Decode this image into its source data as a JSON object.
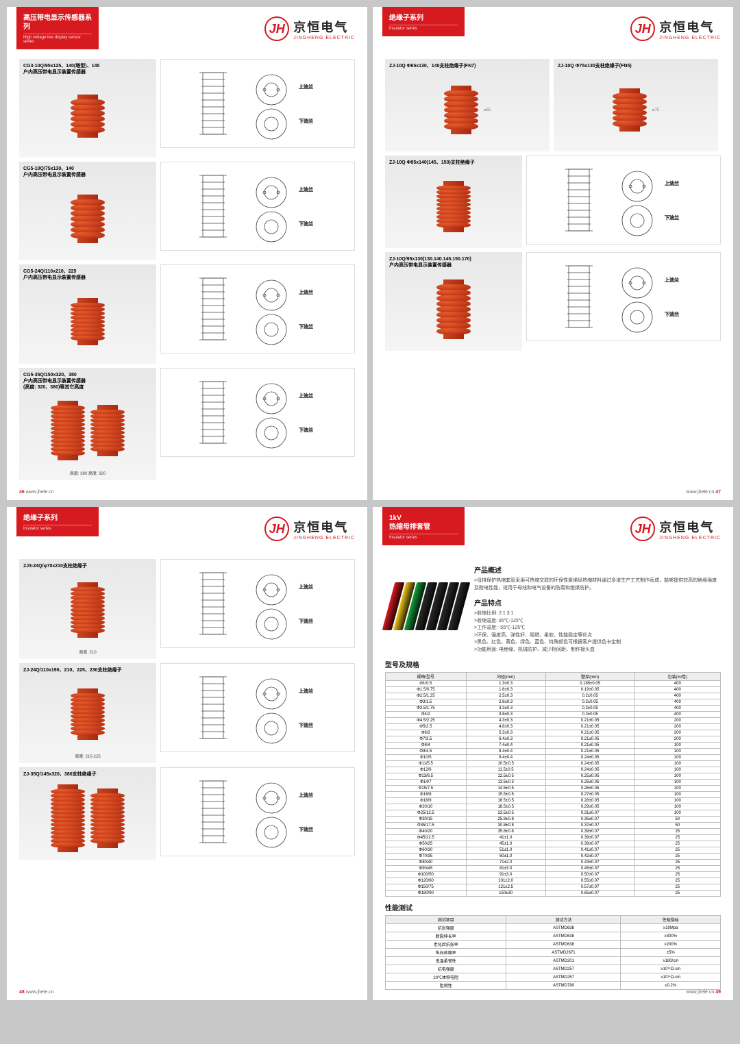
{
  "brand": {
    "cn": "京恒电气",
    "en": "JINGHENG ELECTRIC",
    "logo": "JH"
  },
  "pages": {
    "p46": {
      "tab_title": "高压带电显示传感器系列",
      "tab_sub": "High voltage live display sensor series",
      "num": "46",
      "url": "www.jhele.cn"
    },
    "p47": {
      "tab_title": "绝缘子系列",
      "tab_sub": "Insulator series",
      "num": "47",
      "url": "www.jhele.cn"
    },
    "p48": {
      "tab_title": "绝缘子系列",
      "tab_sub": "Insulator series",
      "num": "48",
      "url": "www.jhele.cn"
    },
    "p49": {
      "tab_title": "1kV\n热缩母排套管",
      "tab_sub": "Insulator series",
      "num": "49",
      "url": "www.jhele.cn"
    }
  },
  "products_46": [
    {
      "title": "CG3-10Q/95x125、140(塔型)、145\n户内高压带电显示装置传感器"
    },
    {
      "title": "CG5-10Q/75x130、140\n户内高压带电显示装置传感器"
    },
    {
      "title": "CG5-24Q/110x210、225\n户内高压带电显示装置传感器"
    },
    {
      "title": "CG5-35Q/150x320、380\n户内高压带电显示装置传感器\n(高度: 320、380)等其它高度",
      "caption": "高度: 380    高度: 320"
    }
  ],
  "products_47": [
    {
      "title": "ZJ-10Q Φ65x130、140支柱绝缘子(FN7)"
    },
    {
      "title": "ZJ-10Q Φ75x130支柱绝缘子(FN5)"
    },
    {
      "title": "ZJ-10Q Φ85x140(145、150)支柱绝缘子"
    },
    {
      "title": "ZJ-10Q/95x130(130.140.145.150.170)\n户内高压带电显示装置传感器"
    }
  ],
  "products_48": [
    {
      "title": "ZJ3-24Q/φ70x210支柱绝缘子",
      "caption": "高度: 210"
    },
    {
      "title": "ZJ-24Q/110x190、210、225、230支柱绝缘子",
      "caption": "高度: 210-225"
    },
    {
      "title": "ZJ-35Q/145x320、380支柱绝缘子"
    }
  ],
  "p49_content": {
    "overview_h": "产品概述",
    "overview_t": ">母排保护热缩套管采用可热缩交联的环保性聚烯烃热缩材料通过多道生产工艺制作而成，能够提供较高的绝缘强度及耐电性能，适用于母线和电气设备的防腐和绝缘防护。",
    "features_h": "产品特点",
    "features": [
      ">收缩比例: 2:1  3:1",
      ">收缩温度: 85℃-125℃",
      ">工作温度: -55℃-125℃",
      ">环保、强度高、弹性好、阻燃、柔软、性能稳定等优点",
      ">黑色、红色、黄色、绿色、蓝色、特殊颜色可根据客户提供色卡定制",
      ">功能用途: 电绝缘、机械防护、减少相间距、制作接头盒"
    ],
    "spec_h": "型号及规格",
    "spec_cols": [
      "规格/型号",
      "内径(mm)",
      "壁厚(mm)",
      "包装(m/卷)"
    ],
    "spec_rows": [
      [
        "Φ1/0.5",
        "1.3±0.3",
        "0.185±0.05",
        "400"
      ],
      [
        "Φ1.5/0.75",
        "1.8±0.3",
        "0.19±0.05",
        "400"
      ],
      [
        "Φ2.5/1.25",
        "2.5±0.3",
        "0.2±0.05",
        "400"
      ],
      [
        "Φ3/1.5",
        "2.8±0.3",
        "0.2±0.05",
        "400"
      ],
      [
        "Φ3.5/1.75",
        "3.3±0.3",
        "0.2±0.05",
        "400"
      ],
      [
        "Φ4/2",
        "3.8±0.3",
        "0.2±0.05",
        "400"
      ],
      [
        "Φ4.5/2.25",
        "4.3±0.3",
        "0.21±0.05",
        "200"
      ],
      [
        "Φ5/2.5",
        "4.8±0.3",
        "0.21±0.05",
        "200"
      ],
      [
        "Φ6/3",
        "5.3±0.3",
        "0.21±0.05",
        "200"
      ],
      [
        "Φ7/3.5",
        "6.4±0.3",
        "0.21±0.05",
        "200"
      ],
      [
        "Φ8/4",
        "7.4±0.4",
        "0.21±0.05",
        "100"
      ],
      [
        "Φ9/4.5",
        "8.4±0.4",
        "0.21±0.05",
        "100"
      ],
      [
        "Φ10/5",
        "9.4±0.4",
        "0.24±0.05",
        "100"
      ],
      [
        "Φ11/5.5",
        "10.5±0.5",
        "0.24±0.05",
        "100"
      ],
      [
        "Φ12/6",
        "11.5±0.5",
        "0.24±0.05",
        "100"
      ],
      [
        "Φ13/6.5",
        "12.5±0.5",
        "0.25±0.05",
        "100"
      ],
      [
        "Φ14/7",
        "13.5±0.3",
        "0.25±0.05",
        "100"
      ],
      [
        "Φ15/7.5",
        "14.5±0.5",
        "0.26±0.05",
        "100"
      ],
      [
        "Φ16/8",
        "15.5±0.5",
        "0.27±0.05",
        "100"
      ],
      [
        "Φ18/9",
        "16.5±0.5",
        "0.28±0.05",
        "100"
      ],
      [
        "Φ20/10",
        "18.5±0.5",
        "0.29±0.05",
        "100"
      ],
      [
        "Φ25/12.5",
        "23.5±0.5",
        "0.31±0.07",
        "100"
      ],
      [
        "Φ30/15",
        "25.8±0.8",
        "0.35±0.07",
        "50"
      ],
      [
        "Φ35/17.5",
        "30.8±0.8",
        "0.37±0.07",
        "50"
      ],
      [
        "Φ40/20",
        "35.8±0.8",
        "0.39±0.07",
        "25"
      ],
      [
        "Φ45/22.5",
        "41±1.0",
        "0.39±0.07",
        "25"
      ],
      [
        "Φ50/25",
        "45±1.0",
        "0.39±0.07",
        "25"
      ],
      [
        "Φ60/30",
        "51±1.0",
        "0.41±0.07",
        "25"
      ],
      [
        "Φ70/35",
        "60±1.0",
        "0.42±0.07",
        "25"
      ],
      [
        "Φ80/40",
        "71±2.0",
        "0.43±0.07",
        "25"
      ],
      [
        "Φ90/45",
        "81±3.0",
        "0.45±0.07",
        "25"
      ],
      [
        "Φ100/50",
        "91±3.0",
        "0.50±0.07",
        "25"
      ],
      [
        "Φ120/60",
        "101±2.0",
        "0.55±0.07",
        "25"
      ],
      [
        "Φ150/75",
        "121±2.5",
        "0.57±0.07",
        "25"
      ],
      [
        "Φ180/90",
        "150±30",
        "0.65±0.07",
        "25"
      ]
    ],
    "perf_h": "性能测试",
    "perf_cols": [
      "测试项目",
      "测试方法",
      "性能指标"
    ],
    "perf_rows": [
      [
        "抗张强度",
        "ASTMD638",
        "≥10Mpa"
      ],
      [
        "断裂伸长率",
        "ASTMD638",
        "≥300%"
      ],
      [
        "老化后抗张率",
        "ASTMD638",
        "≥200%"
      ],
      [
        "纵向收缩率",
        "ASTMD2671",
        "±5%"
      ],
      [
        "低温柔韧性",
        "ASTMD201",
        "≥180/cm"
      ],
      [
        "抗电强度",
        "ASTMD257",
        "≥10¹⁴Ω·cm"
      ],
      [
        "20℃体积电阻",
        "ASTMD257",
        "≥10¹⁴Ω·cm"
      ],
      [
        "阻燃性",
        "ASTMD790",
        "≤0.2%"
      ]
    ],
    "tube_colors": [
      "#d71920",
      "#f0c814",
      "#14a03c",
      "#2a2a2a",
      "#2a2a2a",
      "#2a2a2a",
      "#2a2a2a"
    ]
  },
  "drawing_labels": {
    "top": "上法兰",
    "bottom": "下法兰"
  }
}
